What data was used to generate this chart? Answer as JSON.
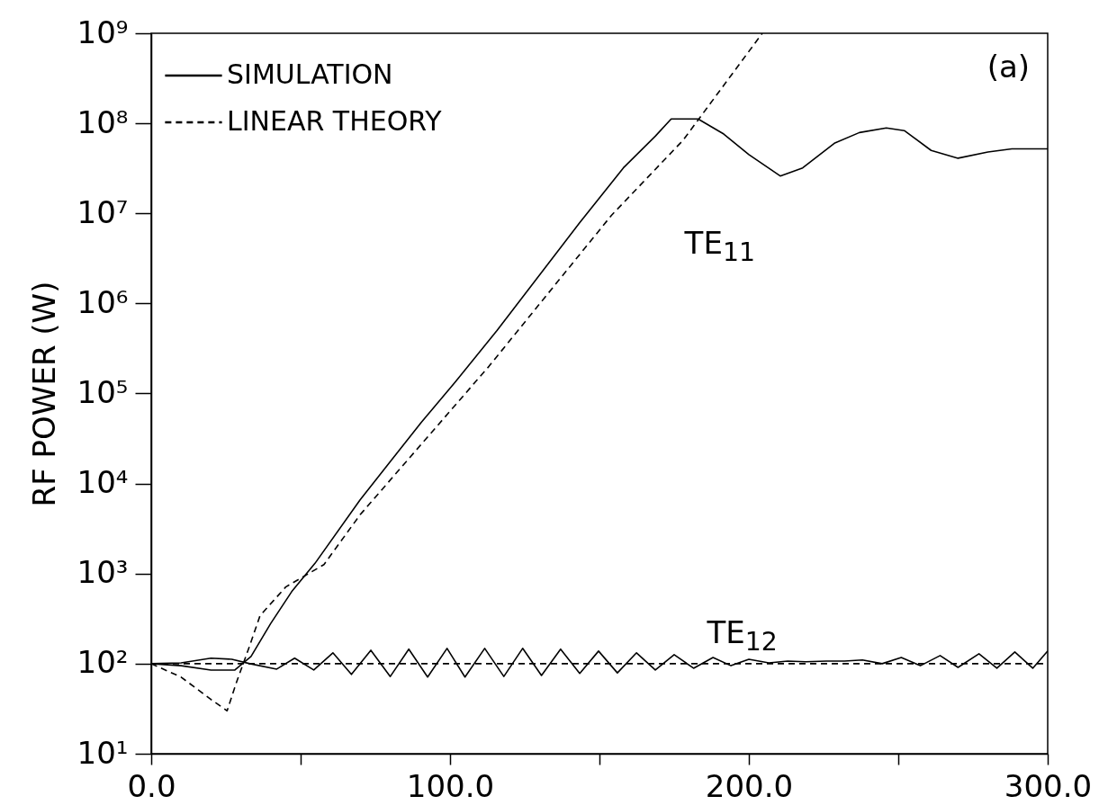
{
  "chart_data": {
    "type": "line",
    "ylabel": "RF POWER (W)",
    "log": "y",
    "grid": false,
    "legend": "top left",
    "marker": "none",
    "xlim": [
      0,
      300
    ],
    "xticks": [
      {
        "value": 0,
        "label": "0.0"
      },
      {
        "value": 50,
        "label": null
      },
      {
        "value": 100,
        "label": "100.0"
      },
      {
        "value": 150,
        "label": null
      },
      {
        "value": 200,
        "label": "200.0"
      },
      {
        "value": 250,
        "label": null
      },
      {
        "value": 300,
        "label": "300.0"
      }
    ],
    "ylim": [
      10,
      1000000000
    ],
    "yticks": [
      {
        "value": 10,
        "label": "10¹"
      },
      {
        "value": 100,
        "label": "10²"
      },
      {
        "value": 1000,
        "label": "10³"
      },
      {
        "value": 10000,
        "label": "10⁴"
      },
      {
        "value": 100000,
        "label": "10⁵"
      },
      {
        "value": 1000000,
        "label": "10⁶"
      },
      {
        "value": 10000000,
        "label": "10⁷"
      },
      {
        "value": 100000000,
        "label": "10⁸"
      },
      {
        "value": 1000000000,
        "label": "10⁹"
      }
    ],
    "annotations": [
      "(a)",
      "TE$_{11}$",
      "TE$_{12}$"
    ],
    "series": [
      {
        "name": "SIMULATION",
        "color": "#000000",
        "line_style": "solid",
        "x": [
          0,
          10,
          20,
          28,
          33.4,
          40,
          47,
          54.8,
          69.9,
          90.4,
          101.8,
          115.7,
          143.4,
          158,
          168.7,
          174,
          183,
          191.6,
          200,
          210.5,
          218,
          228.6,
          237,
          246,
          252,
          261,
          270,
          280,
          288,
          300
        ],
        "values": [
          100,
          95,
          85,
          85,
          120,
          280,
          630,
          1300,
          6600,
          48000,
          135000,
          500000,
          7900000,
          32000000,
          72000000,
          112000000,
          112000000,
          76000000,
          45000000,
          26000000,
          32000000,
          60000000,
          79000000,
          89000000,
          83000000,
          50000000,
          41000000,
          48000000,
          52000000,
          52000000
        ]
      },
      {
        "name": "LINEAR THEORY",
        "color": "#000000",
        "line_style": "dashed",
        "x": [
          0,
          10,
          20,
          25.4,
          28.6,
          33,
          36.4,
          45,
          57.8,
          69.9,
          113,
          154,
          178,
          204.5
        ],
        "values": [
          100,
          71,
          40,
          30,
          63,
          160,
          340,
          710,
          1260,
          4500,
          200000,
          9500000,
          65000000,
          1000000000
        ]
      },
      {
        "color": "#000000",
        "line_style": "solid",
        "x": [
          0,
          10,
          20,
          27,
          33,
          42,
          48,
          54.4,
          60.8,
          67,
          73.5,
          80,
          86.2,
          92.5,
          99,
          105,
          111.6,
          118,
          124.3,
          130.6,
          137,
          143.4,
          149.7,
          156,
          162.4,
          168.7,
          175,
          181.5,
          188,
          194,
          200,
          206.7,
          213,
          219,
          226,
          232,
          238,
          244.6,
          251,
          257.4,
          264,
          270,
          277,
          283,
          289,
          295,
          300
        ],
        "values": [
          100,
          102,
          115,
          112,
          100,
          87,
          115,
          85,
          132,
          76,
          141,
          72,
          145,
          71,
          148,
          71,
          148,
          72,
          148,
          74,
          145,
          78,
          138,
          79,
          132,
          85,
          126,
          89,
          117,
          95,
          112,
          102,
          107,
          105,
          107,
          107,
          110,
          100,
          117,
          95,
          123,
          91,
          129,
          89,
          135,
          89,
          138
        ]
      },
      {
        "color": "#000000",
        "line_style": "dashed",
        "x": [
          0,
          300
        ],
        "values": [
          100,
          100
        ]
      }
    ]
  }
}
